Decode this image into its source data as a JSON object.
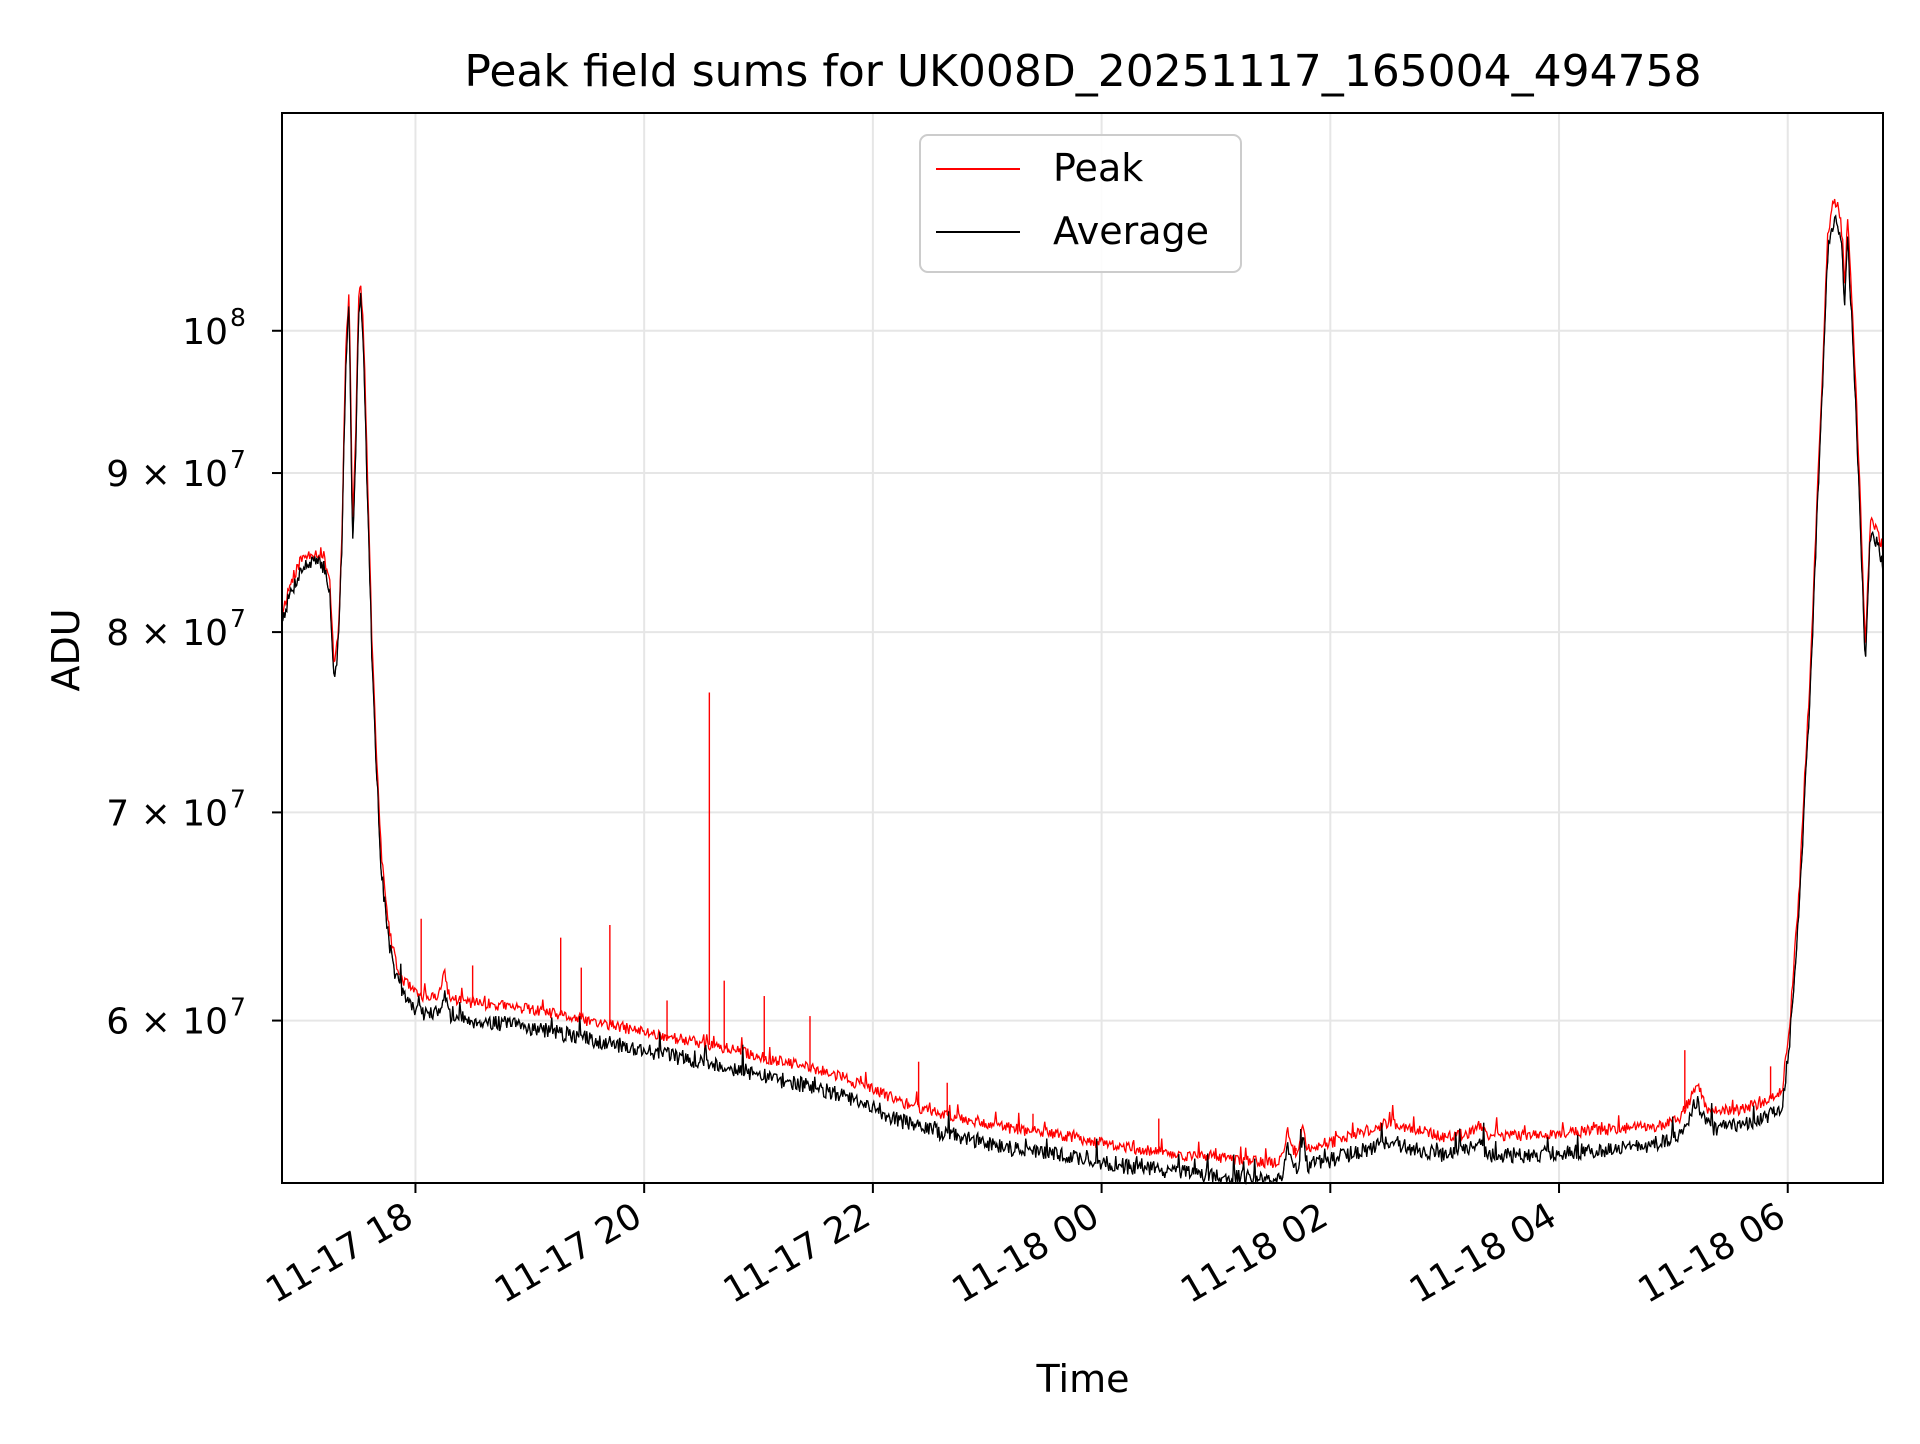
{
  "chart_data": {
    "type": "line",
    "title": "Peak field sums for UK008D_20251117_165004_494758",
    "xlabel": "Time",
    "ylabel": "ADU",
    "y_scale": "log",
    "grid": true,
    "legend_position": "upper-center",
    "colors": {
      "Peak": "#ff0000",
      "Average": "#000000",
      "grid": "#e6e6e6"
    },
    "x_ticks": [
      {
        "hour": 18,
        "label": "11-17 18"
      },
      {
        "hour": 20,
        "label": "11-17 20"
      },
      {
        "hour": 22,
        "label": "11-17 22"
      },
      {
        "hour": 24,
        "label": "11-18 00"
      },
      {
        "hour": 26,
        "label": "11-18 02"
      },
      {
        "hour": 28,
        "label": "11-18 04"
      },
      {
        "hour": 30,
        "label": "11-18 06"
      }
    ],
    "y_ticks": [
      {
        "value": 60000000,
        "label": "6 × 10",
        "exp": "7"
      },
      {
        "value": 70000000,
        "label": "7 × 10",
        "exp": "7"
      },
      {
        "value": 80000000,
        "label": "8 × 10",
        "exp": "7"
      },
      {
        "value": 90000000,
        "label": "9 × 10",
        "exp": "7"
      },
      {
        "value": 100000000,
        "label": "10",
        "exp": "8"
      }
    ],
    "xlim_hours": [
      16.833,
      30.833
    ],
    "ylim": [
      53200000,
      117500000
    ],
    "x_unit": "hours since 2025-11-17 00:00",
    "series": [
      {
        "name": "Peak",
        "points": [
          [
            16.84,
            81.3
          ],
          [
            16.9,
            82.8
          ],
          [
            17.0,
            84.4
          ],
          [
            17.1,
            84.9
          ],
          [
            17.2,
            84.6
          ],
          [
            17.25,
            83.2
          ],
          [
            17.29,
            77.9
          ],
          [
            17.33,
            80.5
          ],
          [
            17.36,
            87.0
          ],
          [
            17.39,
            98.5
          ],
          [
            17.42,
            103.2
          ],
          [
            17.45,
            86.6
          ],
          [
            17.48,
            93.0
          ],
          [
            17.5,
            102.0
          ],
          [
            17.52,
            104.1
          ],
          [
            17.55,
            99.0
          ],
          [
            17.58,
            89.8
          ],
          [
            17.62,
            79.5
          ],
          [
            17.66,
            73.0
          ],
          [
            17.7,
            68.0
          ],
          [
            17.75,
            65.0
          ],
          [
            17.8,
            63.2
          ],
          [
            17.85,
            62.2
          ],
          [
            17.9,
            61.8
          ],
          [
            18.0,
            61.2
          ],
          [
            18.1,
            61.0
          ],
          [
            18.2,
            61.1
          ],
          [
            18.25,
            62.2
          ],
          [
            18.3,
            61.0
          ],
          [
            18.5,
            60.8
          ],
          [
            18.7,
            60.7
          ],
          [
            19.0,
            60.5
          ],
          [
            19.3,
            60.2
          ],
          [
            19.6,
            59.9
          ],
          [
            19.9,
            59.6
          ],
          [
            20.2,
            59.3
          ],
          [
            20.5,
            59.0
          ],
          [
            20.8,
            58.7
          ],
          [
            21.1,
            58.3
          ],
          [
            21.4,
            58.0
          ],
          [
            21.7,
            57.6
          ],
          [
            22.0,
            57.0
          ],
          [
            22.3,
            56.4
          ],
          [
            22.6,
            56.0
          ],
          [
            22.9,
            55.7
          ],
          [
            23.2,
            55.4
          ],
          [
            23.5,
            55.2
          ],
          [
            23.8,
            55.0
          ],
          [
            24.1,
            54.7
          ],
          [
            24.4,
            54.5
          ],
          [
            24.7,
            54.3
          ],
          [
            25.0,
            54.2
          ],
          [
            25.3,
            54.1
          ],
          [
            25.5,
            54.0
          ],
          [
            25.55,
            54.0
          ],
          [
            25.6,
            54.5
          ],
          [
            25.62,
            55.4
          ],
          [
            25.66,
            54.6
          ],
          [
            25.72,
            54.4
          ],
          [
            25.76,
            55.5
          ],
          [
            25.8,
            54.6
          ],
          [
            26.0,
            54.8
          ],
          [
            26.2,
            55.1
          ],
          [
            26.5,
            55.6
          ],
          [
            26.8,
            55.3
          ],
          [
            27.0,
            55.0
          ],
          [
            27.2,
            55.2
          ],
          [
            27.3,
            55.5
          ],
          [
            27.4,
            55.1
          ],
          [
            27.7,
            55.1
          ],
          [
            28.0,
            55.2
          ],
          [
            28.3,
            55.3
          ],
          [
            28.6,
            55.4
          ],
          [
            28.9,
            55.5
          ],
          [
            29.05,
            55.8
          ],
          [
            29.15,
            56.6
          ],
          [
            29.2,
            57.2
          ],
          [
            29.25,
            56.8
          ],
          [
            29.3,
            56.1
          ],
          [
            29.4,
            56.1
          ],
          [
            29.6,
            56.2
          ],
          [
            29.8,
            56.5
          ],
          [
            29.95,
            56.9
          ],
          [
            30.02,
            60.0
          ],
          [
            30.1,
            66.0
          ],
          [
            30.2,
            78.0
          ],
          [
            30.3,
            96.0
          ],
          [
            30.35,
            107.5
          ],
          [
            30.4,
            110.0
          ],
          [
            30.45,
            109.5
          ],
          [
            30.48,
            107.0
          ],
          [
            30.5,
            103.0
          ],
          [
            30.52,
            109.0
          ],
          [
            30.55,
            104.0
          ],
          [
            30.6,
            95.0
          ],
          [
            30.65,
            85.0
          ],
          [
            30.68,
            79.0
          ],
          [
            30.72,
            86.8
          ],
          [
            30.78,
            86.5
          ],
          [
            30.83,
            85.0
          ]
        ],
        "spikes": [
          [
            20.57,
            76.5
          ],
          [
            19.7,
            64.4
          ],
          [
            19.27,
            63.8
          ],
          [
            18.05,
            64.7
          ],
          [
            18.5,
            62.5
          ],
          [
            19.45,
            62.4
          ],
          [
            20.2,
            60.9
          ],
          [
            20.7,
            61.8
          ],
          [
            21.05,
            61.1
          ],
          [
            21.45,
            60.2
          ],
          [
            22.4,
            58.2
          ],
          [
            22.65,
            57.3
          ],
          [
            23.4,
            56.0
          ],
          [
            24.5,
            55.8
          ],
          [
            25.7,
            54.6
          ],
          [
            29.1,
            58.7
          ],
          [
            29.85,
            58.0
          ]
        ]
      },
      {
        "name": "Average",
        "points": [
          [
            16.84,
            80.9
          ],
          [
            16.9,
            82.2
          ],
          [
            17.0,
            83.8
          ],
          [
            17.1,
            84.3
          ],
          [
            17.2,
            84.0
          ],
          [
            17.25,
            82.5
          ],
          [
            17.29,
            76.8
          ],
          [
            17.33,
            79.8
          ],
          [
            17.36,
            86.0
          ],
          [
            17.39,
            97.5
          ],
          [
            17.42,
            102.2
          ],
          [
            17.45,
            85.3
          ],
          [
            17.48,
            91.8
          ],
          [
            17.5,
            100.5
          ],
          [
            17.52,
            102.7
          ],
          [
            17.55,
            97.5
          ],
          [
            17.58,
            88.5
          ],
          [
            17.62,
            78.5
          ],
          [
            17.66,
            72.2
          ],
          [
            17.7,
            67.2
          ],
          [
            17.75,
            64.3
          ],
          [
            17.8,
            62.6
          ],
          [
            17.85,
            61.6
          ],
          [
            17.9,
            61.1
          ],
          [
            18.0,
            60.5
          ],
          [
            18.1,
            60.3
          ],
          [
            18.2,
            60.3
          ],
          [
            18.25,
            61.3
          ],
          [
            18.3,
            60.2
          ],
          [
            18.5,
            60.0
          ],
          [
            18.7,
            59.9
          ],
          [
            19.0,
            59.7
          ],
          [
            19.3,
            59.4
          ],
          [
            19.6,
            59.1
          ],
          [
            19.9,
            58.8
          ],
          [
            20.2,
            58.5
          ],
          [
            20.5,
            58.2
          ],
          [
            20.8,
            57.9
          ],
          [
            21.1,
            57.5
          ],
          [
            21.4,
            57.2
          ],
          [
            21.7,
            56.8
          ],
          [
            22.0,
            56.2
          ],
          [
            22.3,
            55.6
          ],
          [
            22.6,
            55.2
          ],
          [
            22.9,
            54.9
          ],
          [
            23.2,
            54.6
          ],
          [
            23.5,
            54.4
          ],
          [
            23.8,
            54.2
          ],
          [
            24.1,
            53.9
          ],
          [
            24.4,
            53.8
          ],
          [
            24.7,
            53.6
          ],
          [
            25.0,
            53.5
          ],
          [
            25.3,
            53.4
          ],
          [
            25.5,
            53.3
          ],
          [
            25.55,
            53.3
          ],
          [
            25.6,
            53.8
          ],
          [
            25.62,
            55.0
          ],
          [
            25.66,
            53.9
          ],
          [
            25.72,
            53.7
          ],
          [
            25.76,
            55.1
          ],
          [
            25.8,
            53.9
          ],
          [
            26.0,
            54.1
          ],
          [
            26.2,
            54.4
          ],
          [
            26.5,
            54.8
          ],
          [
            26.8,
            54.5
          ],
          [
            27.0,
            54.3
          ],
          [
            27.2,
            54.5
          ],
          [
            27.3,
            54.8
          ],
          [
            27.4,
            54.3
          ],
          [
            27.7,
            54.3
          ],
          [
            28.0,
            54.4
          ],
          [
            28.3,
            54.5
          ],
          [
            28.6,
            54.6
          ],
          [
            28.9,
            54.8
          ],
          [
            29.05,
            55.1
          ],
          [
            29.15,
            56.0
          ],
          [
            29.2,
            56.6
          ],
          [
            29.25,
            56.1
          ],
          [
            29.3,
            55.4
          ],
          [
            29.4,
            55.4
          ],
          [
            29.6,
            55.5
          ],
          [
            29.8,
            55.8
          ],
          [
            29.95,
            56.2
          ],
          [
            30.02,
            59.2
          ],
          [
            30.1,
            65.0
          ],
          [
            30.2,
            77.0
          ],
          [
            30.3,
            95.0
          ],
          [
            30.35,
            106.0
          ],
          [
            30.4,
            108.5
          ],
          [
            30.45,
            108.0
          ],
          [
            30.48,
            105.5
          ],
          [
            30.5,
            101.5
          ],
          [
            30.52,
            107.5
          ],
          [
            30.55,
            102.5
          ],
          [
            30.6,
            93.5
          ],
          [
            30.65,
            83.5
          ],
          [
            30.68,
            78.0
          ],
          [
            30.72,
            85.8
          ],
          [
            30.78,
            85.5
          ],
          [
            30.83,
            84.2
          ]
        ]
      }
    ],
    "y_value_unit": "million ADU"
  }
}
